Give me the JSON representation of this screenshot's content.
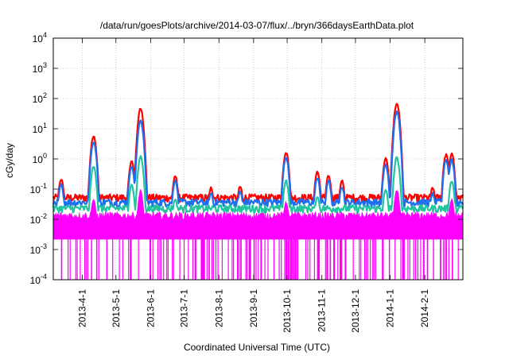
{
  "chart_data": {
    "type": "line",
    "title": "/data/run/goesPlots/archive/2014-03-07/flux/../bryn/366daysEarthData.plot",
    "xlabel": "Coordinated Universal Time (UTC)",
    "ylabel": "cGy/day",
    "yscale": "log",
    "ylim": [
      0.0001,
      10000
    ],
    "y_ticks": [
      {
        "base": "10",
        "exp": "-4"
      },
      {
        "base": "10",
        "exp": "-3"
      },
      {
        "base": "10",
        "exp": "-2"
      },
      {
        "base": "10",
        "exp": "-1"
      },
      {
        "base": "10",
        "exp": "0"
      },
      {
        "base": "10",
        "exp": "1"
      },
      {
        "base": "10",
        "exp": "2"
      },
      {
        "base": "10",
        "exp": "3"
      },
      {
        "base": "10",
        "exp": "4"
      }
    ],
    "xlim": [
      "2013-03-06",
      "2014-03-07"
    ],
    "x_ticks": [
      "2013-4-1",
      "2013-5-1",
      "2013-6-1",
      "2013-7-1",
      "2013-8-1",
      "2013-9-1",
      "2013-10-1",
      "2013-11-1",
      "2013-12-1",
      "2014-1-1",
      "2014-2-1"
    ],
    "grid": true,
    "legend": "none",
    "series": [
      {
        "color": "#ff0000",
        "baseline": 0.05,
        "peaks": [
          {
            "x": "2013-03-13",
            "y": 0.23
          },
          {
            "x": "2013-04-11",
            "y": 6.0
          },
          {
            "x": "2013-05-15",
            "y": 0.9
          },
          {
            "x": "2013-05-23",
            "y": 50
          },
          {
            "x": "2013-06-23",
            "y": 0.28
          },
          {
            "x": "2013-07-25",
            "y": 0.12
          },
          {
            "x": "2013-08-20",
            "y": 0.13
          },
          {
            "x": "2013-09-30",
            "y": 1.8
          },
          {
            "x": "2013-10-28",
            "y": 0.4
          },
          {
            "x": "2013-11-07",
            "y": 0.3
          },
          {
            "x": "2013-11-19",
            "y": 0.2
          },
          {
            "x": "2013-12-28",
            "y": 1.1
          },
          {
            "x": "2014-01-07",
            "y": 75
          },
          {
            "x": "2014-02-08",
            "y": 0.12
          },
          {
            "x": "2014-02-20",
            "y": 1.5
          },
          {
            "x": "2014-02-25",
            "y": 1.6
          }
        ]
      },
      {
        "color": "#1e6ff0",
        "baseline": 0.035,
        "peaks": [
          {
            "x": "2013-03-13",
            "y": 0.15
          },
          {
            "x": "2013-04-11",
            "y": 4.0
          },
          {
            "x": "2013-05-15",
            "y": 0.6
          },
          {
            "x": "2013-05-23",
            "y": 20
          },
          {
            "x": "2013-06-23",
            "y": 0.2
          },
          {
            "x": "2013-07-25",
            "y": 0.08
          },
          {
            "x": "2013-08-20",
            "y": 0.09
          },
          {
            "x": "2013-09-30",
            "y": 1.2
          },
          {
            "x": "2013-10-28",
            "y": 0.25
          },
          {
            "x": "2013-11-07",
            "y": 0.2
          },
          {
            "x": "2013-11-19",
            "y": 0.13
          },
          {
            "x": "2013-12-28",
            "y": 0.7
          },
          {
            "x": "2014-01-07",
            "y": 40
          },
          {
            "x": "2014-02-08",
            "y": 0.08
          },
          {
            "x": "2014-02-20",
            "y": 1.0
          },
          {
            "x": "2014-02-25",
            "y": 1.0
          }
        ]
      },
      {
        "color": "#22c4a0",
        "baseline": 0.022,
        "peaks": [
          {
            "x": "2013-04-11",
            "y": 0.6
          },
          {
            "x": "2013-05-15",
            "y": 0.15
          },
          {
            "x": "2013-05-23",
            "y": 1.3
          },
          {
            "x": "2013-06-23",
            "y": 0.05
          },
          {
            "x": "2013-09-30",
            "y": 0.2
          },
          {
            "x": "2013-10-28",
            "y": 0.06
          },
          {
            "x": "2013-12-28",
            "y": 0.1
          },
          {
            "x": "2014-01-07",
            "y": 1.2
          },
          {
            "x": "2014-02-25",
            "y": 0.2
          }
        ]
      },
      {
        "color": "#ff00ff",
        "baseline": 0.013,
        "floor": 0.0022,
        "peaks": [
          {
            "x": "2013-04-11",
            "y": 0.05
          },
          {
            "x": "2013-05-23",
            "y": 0.1
          },
          {
            "x": "2013-09-30",
            "y": 0.04
          },
          {
            "x": "2014-01-07",
            "y": 0.1
          },
          {
            "x": "2014-02-25",
            "y": 0.05
          }
        ]
      }
    ]
  }
}
